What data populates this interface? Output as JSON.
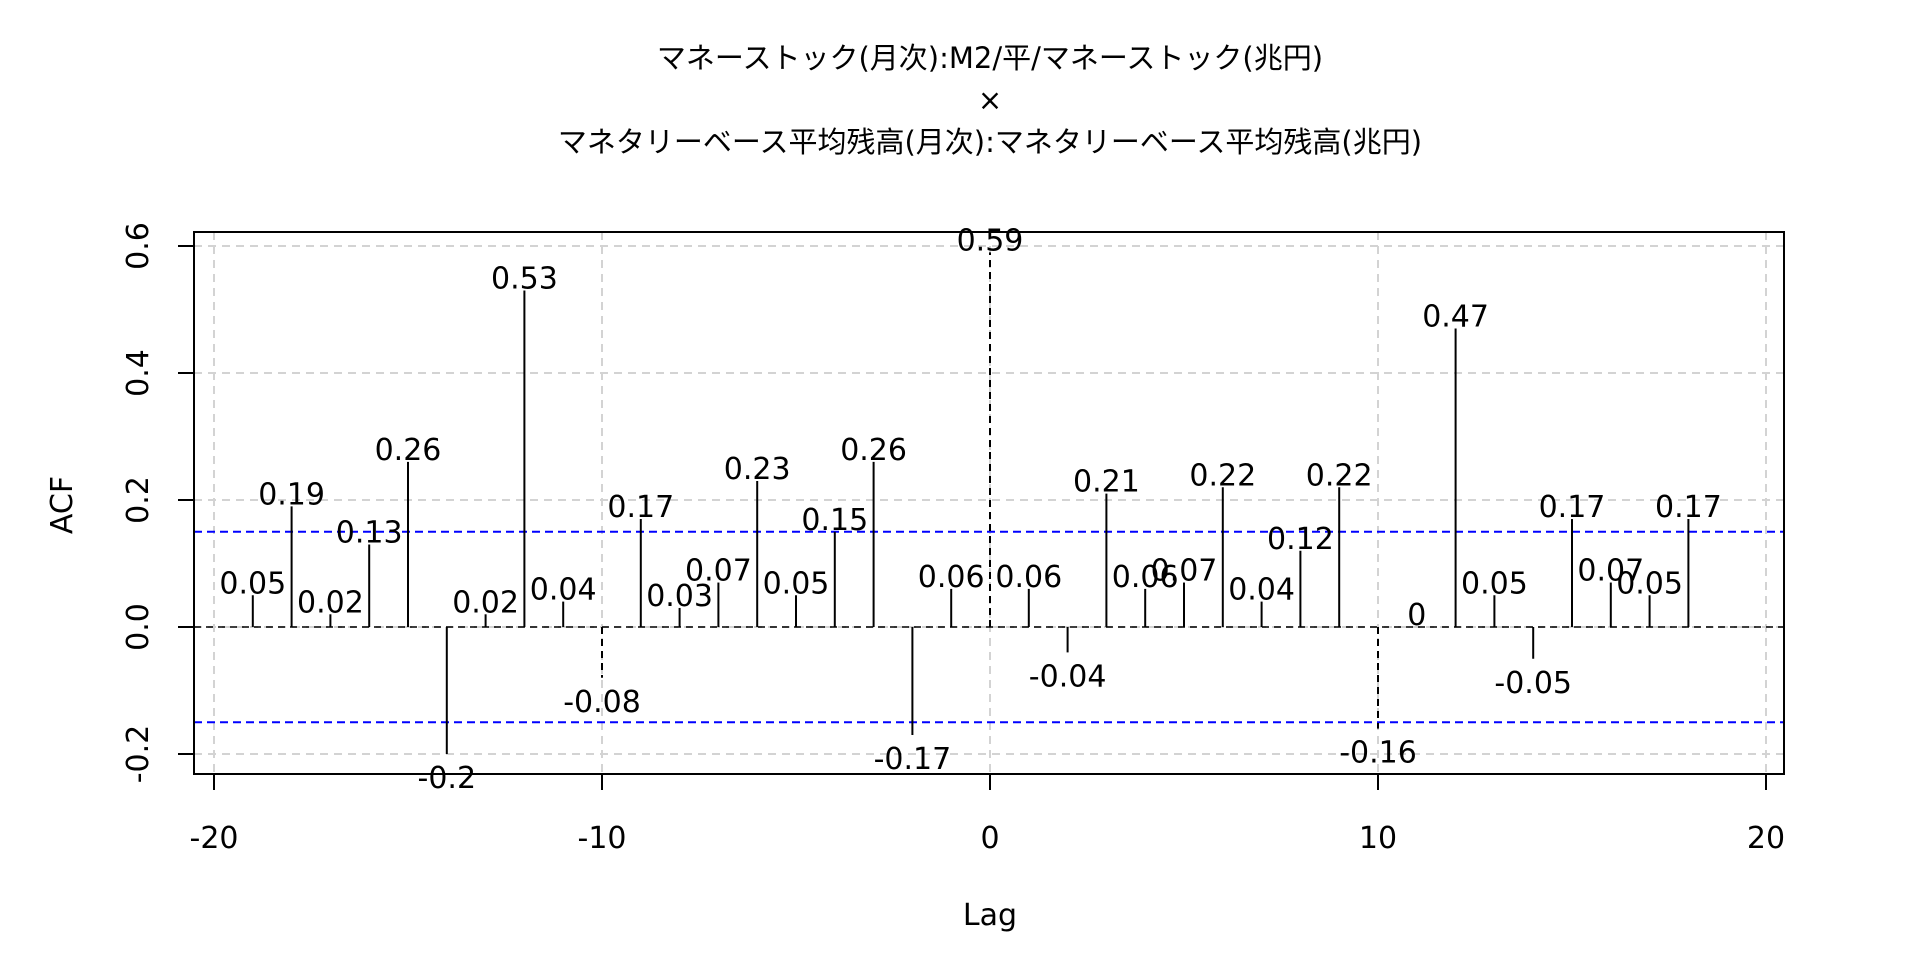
{
  "chart_data": {
    "type": "bar",
    "title_lines": [
      "マネーストック(月次):M2/平/マネーストック(兆円)",
      "×",
      "マネタリーベース平均残高(月次):マネタリーベース平均残高(兆円)"
    ],
    "xlabel": "Lag",
    "ylabel": "ACF",
    "xlim": [
      -20,
      20
    ],
    "ylim": [
      -0.2,
      0.6
    ],
    "x_ticks": [
      -20,
      -10,
      0,
      10,
      20
    ],
    "y_ticks": [
      -0.2,
      0.0,
      0.2,
      0.4,
      0.6
    ],
    "x_tick_labels": [
      "-20",
      "-10",
      "0",
      "10",
      "20"
    ],
    "y_tick_labels": [
      "-0.2",
      "0.0",
      "0.2",
      "0.4",
      "0.6"
    ],
    "grid": true,
    "confidence_band": 0.15,
    "zero_line": 0,
    "x": [
      -19,
      -18,
      -17,
      -16,
      -15,
      -14,
      -13,
      -12,
      -11,
      -10,
      -9,
      -8,
      -7,
      -6,
      -5,
      -4,
      -3,
      -2,
      -1,
      0,
      1,
      2,
      3,
      4,
      5,
      6,
      7,
      8,
      9,
      10,
      11,
      12,
      13,
      14,
      15,
      16,
      17,
      18
    ],
    "values": [
      0.05,
      0.19,
      0.02,
      0.13,
      0.26,
      -0.2,
      0.02,
      0.53,
      0.04,
      -0.08,
      0.17,
      0.03,
      0.07,
      0.23,
      0.05,
      0.15,
      0.26,
      -0.17,
      0.06,
      0.59,
      0.06,
      -0.04,
      0.21,
      0.06,
      0.07,
      0.22,
      0.04,
      0.12,
      0.22,
      -0.16,
      0,
      0.47,
      0.05,
      -0.05,
      0.17,
      0.07,
      0.05,
      0.17
    ],
    "labels": [
      "0.05",
      "0.19",
      "0.02",
      "0.13",
      "0.26",
      "-0.2",
      "0.02",
      "0.53",
      "0.04",
      "-0.08",
      "0.17",
      "0.03",
      "0.07",
      "0.23",
      "0.05",
      "0.15",
      "0.26",
      "-0.17",
      "0.06",
      "0.59",
      "0.06",
      "-0.04",
      "0.21",
      "0.06",
      "0.07",
      "0.22",
      "0.04",
      "0.12",
      "0.22",
      "-0.16",
      "0",
      "0.47",
      "0.05",
      "-0.05",
      "0.17",
      "0.07",
      "0.05",
      "0.17"
    ],
    "colors": {
      "bar": "#000000",
      "confidence_band": "#0000ff",
      "grid": "#d3d3d3",
      "zero_line": "#000000"
    }
  }
}
